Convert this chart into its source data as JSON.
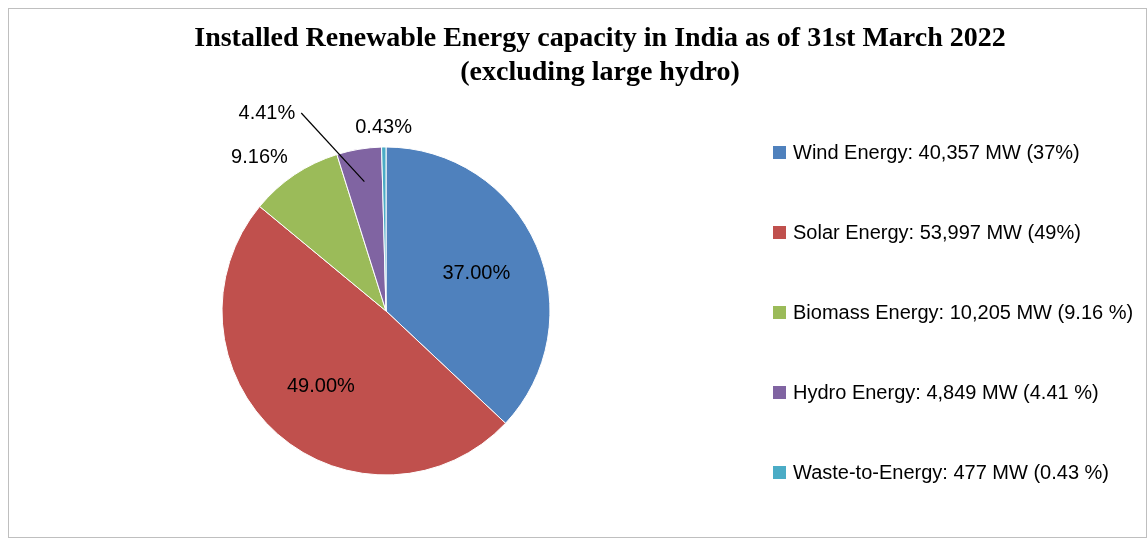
{
  "chart_data": {
    "type": "pie",
    "title": "Installed Renewable Energy capacity in India as of 31st March 2022 (excluding large hydro)",
    "categories": [
      "Wind Energy: 40,357 MW (37%)",
      "Solar Energy: 53,997 MW (49%)",
      "Biomass Energy: 10,205 MW (9.16 %)",
      "Hydro Energy: 4,849 MW (4.41 %)",
      "Waste-to-Energy: 477 MW (0.43 %)"
    ],
    "values": [
      37,
      49,
      9.16,
      4.41,
      0.43
    ],
    "colors": [
      "#4f81bd",
      "#c0504d",
      "#9bbb59",
      "#8064a2",
      "#4bacc6"
    ],
    "value_labels": [
      "37.00%",
      "49.00%",
      "9.16%",
      "4.41%",
      "0.43%"
    ],
    "legend": "right"
  }
}
